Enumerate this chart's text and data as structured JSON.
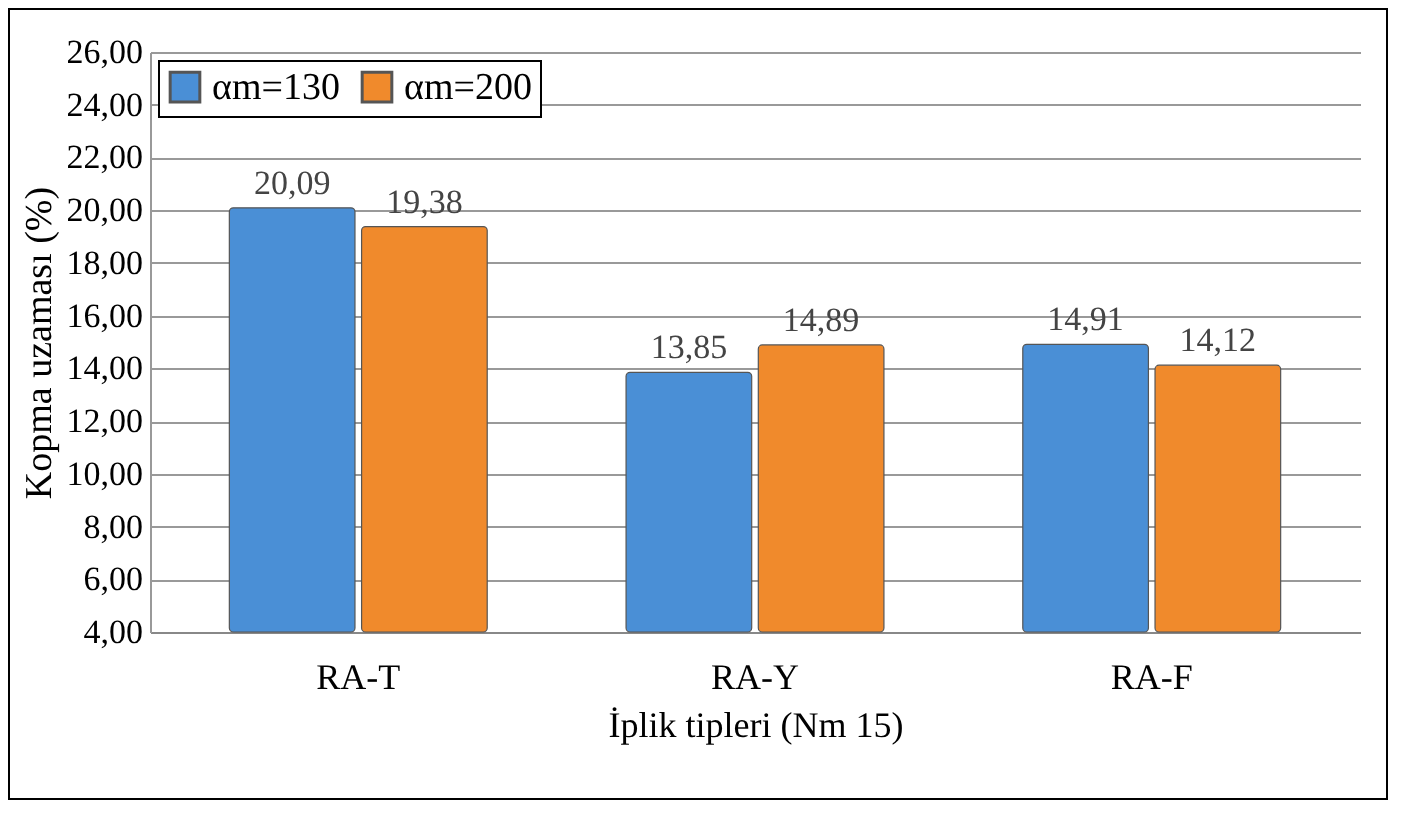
{
  "chart_data": {
    "type": "bar",
    "xlabel": "İplik tipleri (Nm 15)",
    "ylabel": "Kopma uzaması (%)",
    "categories": [
      "RA-T",
      "RA-Y",
      "RA-F"
    ],
    "series": [
      {
        "name": "αm=130",
        "color": "#4a8fd6",
        "values": [
          20.09,
          13.85,
          14.91
        ],
        "value_labels": [
          "20,09",
          "13,85",
          "14,91"
        ]
      },
      {
        "name": "αm=200",
        "color": "#f08a2c",
        "values": [
          19.38,
          14.89,
          14.12
        ],
        "value_labels": [
          "19,38",
          "14,89",
          "14,12"
        ]
      }
    ],
    "ylim": [
      4,
      26
    ],
    "yticks": [
      {
        "value": 4,
        "label": "4,00"
      },
      {
        "value": 6,
        "label": "6,00"
      },
      {
        "value": 8,
        "label": "8,00"
      },
      {
        "value": 10,
        "label": "10,00"
      },
      {
        "value": 12,
        "label": "12,00"
      },
      {
        "value": 14,
        "label": "14,00"
      },
      {
        "value": 16,
        "label": "16,00"
      },
      {
        "value": 18,
        "label": "18,00"
      },
      {
        "value": 20,
        "label": "20,00"
      },
      {
        "value": 22,
        "label": "22,00"
      },
      {
        "value": 24,
        "label": "24,00"
      },
      {
        "value": 26,
        "label": "26,00"
      }
    ],
    "grid": true,
    "legend": "top left"
  }
}
